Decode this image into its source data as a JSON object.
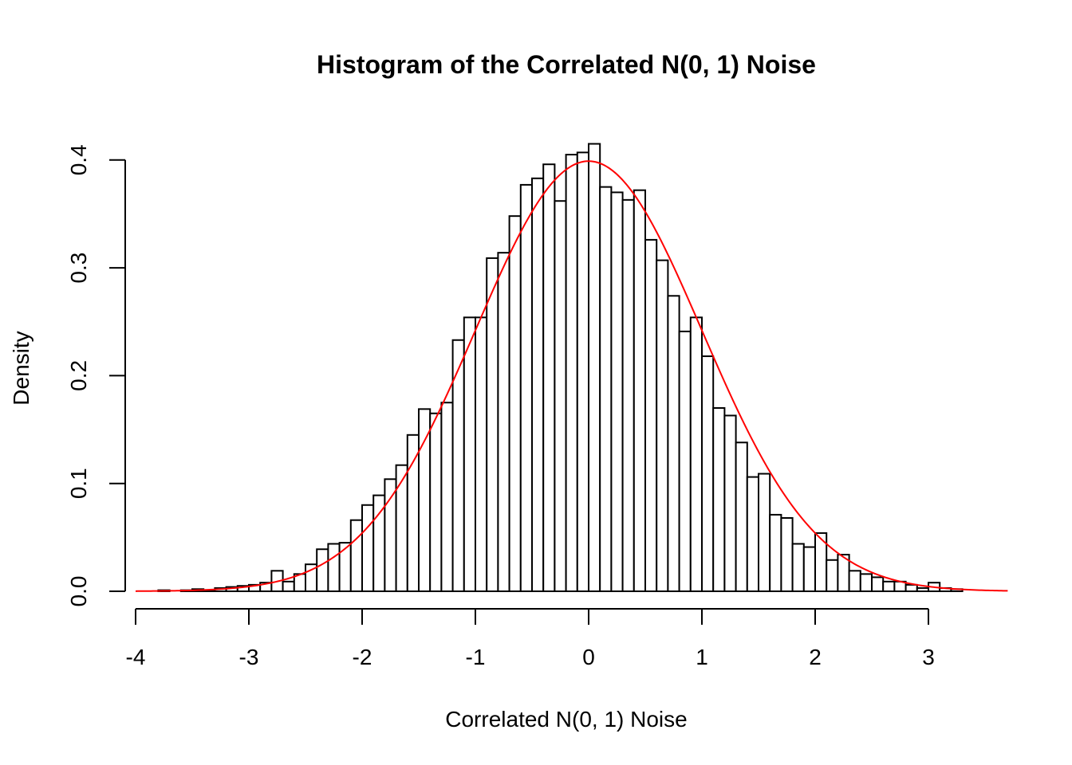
{
  "chart_data": {
    "type": "bar",
    "title": "Histogram of the Correlated N(0, 1) Noise",
    "xlabel": "Correlated N(0, 1) Noise",
    "ylabel": "Density",
    "xlim": [
      -4,
      3.7
    ],
    "ylim": [
      0,
      0.4
    ],
    "bin_width": 0.1,
    "bin_start": -3.8,
    "x_ticks": [
      -4,
      -3,
      -2,
      -1,
      0,
      1,
      2,
      3
    ],
    "x_tick_labels": [
      "-4",
      "-3",
      "-2",
      "-1",
      "0",
      "1",
      "2",
      "3"
    ],
    "y_ticks": [
      0.0,
      0.1,
      0.2,
      0.3,
      0.4
    ],
    "y_tick_labels": [
      "0.0",
      "0.1",
      "0.2",
      "0.3",
      "0.4"
    ],
    "values": [
      0.001,
      0.0,
      0.001,
      0.002,
      0.001,
      0.003,
      0.004,
      0.005,
      0.006,
      0.008,
      0.019,
      0.009,
      0.016,
      0.025,
      0.039,
      0.044,
      0.045,
      0.066,
      0.08,
      0.089,
      0.104,
      0.117,
      0.145,
      0.169,
      0.165,
      0.175,
      0.233,
      0.254,
      0.254,
      0.309,
      0.314,
      0.348,
      0.377,
      0.383,
      0.396,
      0.362,
      0.405,
      0.407,
      0.415,
      0.375,
      0.37,
      0.363,
      0.372,
      0.326,
      0.307,
      0.274,
      0.241,
      0.254,
      0.218,
      0.17,
      0.163,
      0.138,
      0.106,
      0.109,
      0.071,
      0.068,
      0.044,
      0.041,
      0.054,
      0.029,
      0.034,
      0.019,
      0.016,
      0.013,
      0.009,
      0.009,
      0.006,
      0.003,
      0.008,
      0.003,
      0.002
    ],
    "density_curve": {
      "name": "N(0, 1) density",
      "color": "#ff0000",
      "mean": 0,
      "sd": 1,
      "x_range": [
        -4,
        3.7
      ]
    },
    "bar_color": "#ffffff",
    "bar_border_color": "#000000",
    "grid": false
  }
}
